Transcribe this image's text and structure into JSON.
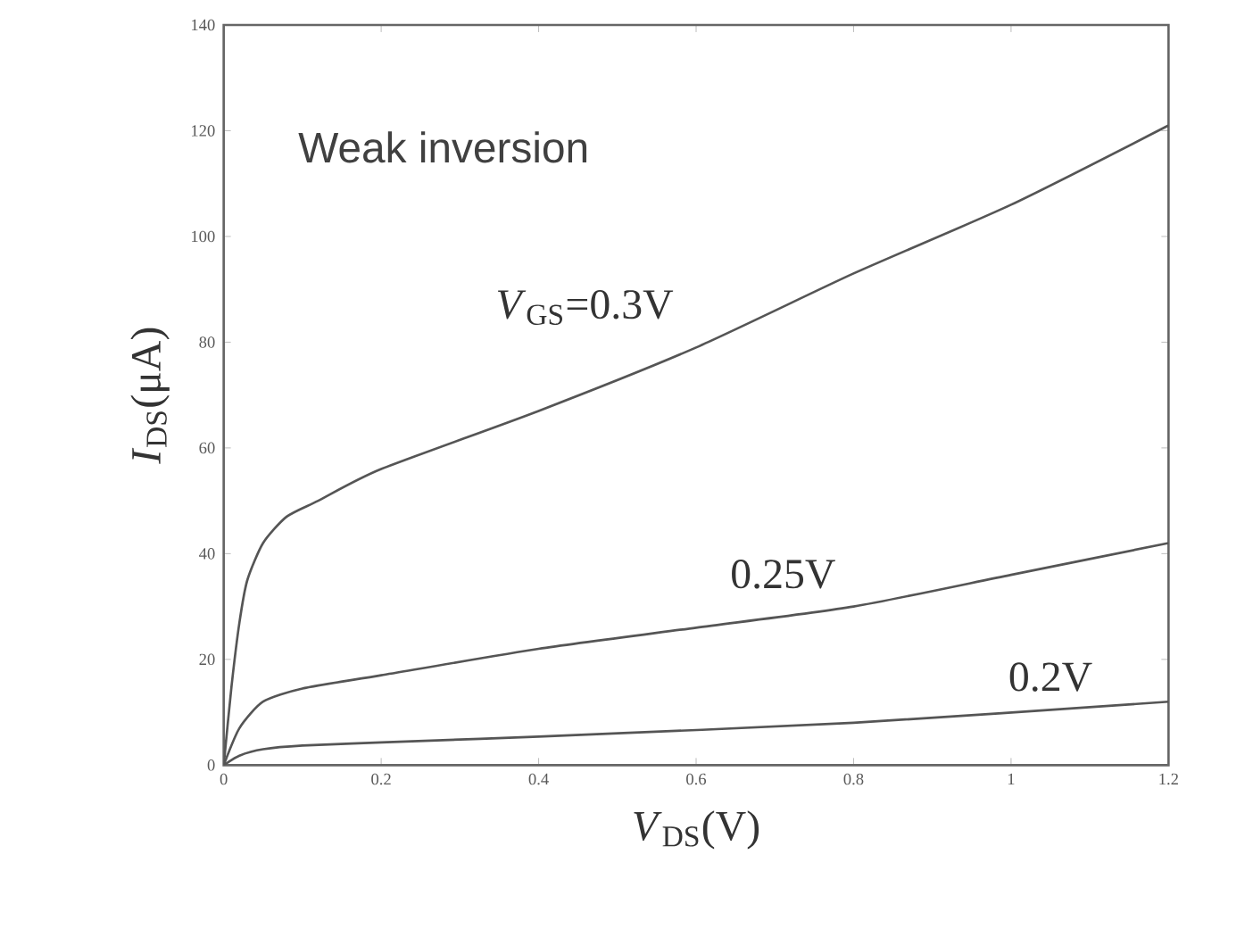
{
  "chart_data": {
    "type": "line",
    "xlabel": "*V*$_{DS}$(V)",
    "ylabel": "*I*$_{DS}$(μA)",
    "xlim": [
      0,
      1.2
    ],
    "xticks": [
      0,
      0.2,
      0.4,
      0.6,
      0.8,
      1,
      1.2
    ],
    "ylim": [
      0,
      140
    ],
    "yticks": [
      0,
      20,
      40,
      60,
      80,
      100,
      120,
      140
    ],
    "grid": false,
    "marker": "none",
    "line_style": "solid",
    "series": [
      {
        "color": "#555555",
        "x": [
          0,
          0.01,
          0.02,
          0.03,
          0.05,
          0.08,
          0.12,
          0.2,
          0.4,
          0.6,
          0.8,
          1.0,
          1.2
        ],
        "values": [
          0,
          15,
          27,
          35,
          42,
          47,
          50,
          56,
          67,
          79,
          93,
          106,
          121
        ]
      },
      {
        "color": "#555555",
        "x": [
          0,
          0.02,
          0.05,
          0.1,
          0.2,
          0.4,
          0.6,
          0.8,
          1.0,
          1.2
        ],
        "values": [
          0,
          7,
          12,
          14.5,
          17,
          22,
          26,
          30,
          36,
          42
        ]
      },
      {
        "color": "#555555",
        "x": [
          0,
          0.02,
          0.05,
          0.1,
          0.2,
          0.4,
          0.8,
          1.2
        ],
        "values": [
          0,
          1.8,
          3,
          3.7,
          4.3,
          5.4,
          8,
          12
        ]
      }
    ],
    "annotations": [
      "Weak inversion",
      {
        "text": "*V*$_{GS}$=0.3V",
        "x": 0.6,
        "y": 79
      },
      {
        "text": "0.25V",
        "x": 0.8,
        "y": 30
      },
      {
        "text": "0.2V",
        "x": 1.05,
        "y": 11
      }
    ]
  }
}
